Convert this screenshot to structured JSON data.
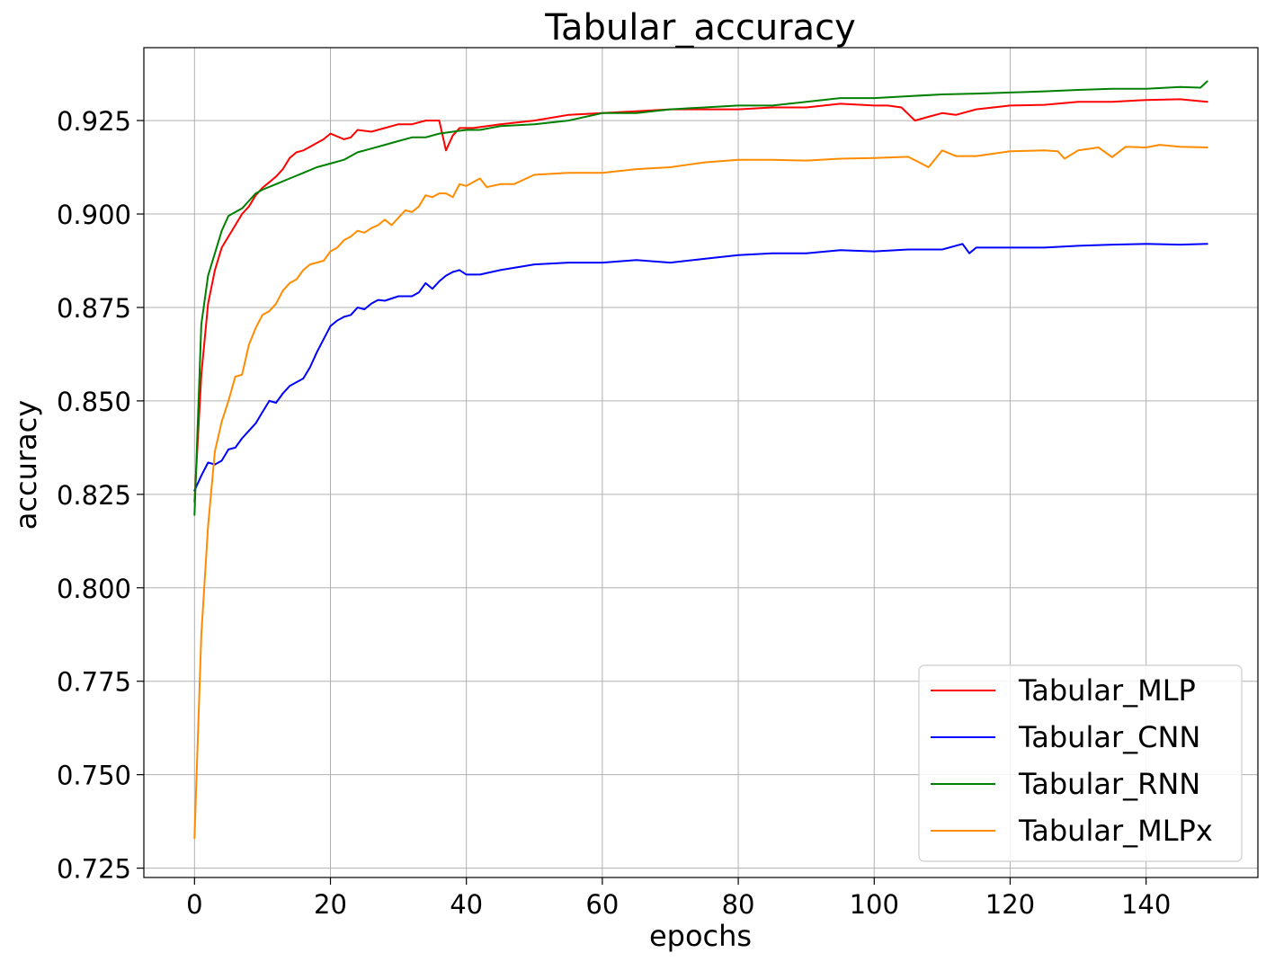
{
  "chart_data": {
    "type": "line",
    "title": "Tabular_accuracy",
    "xlabel": "epochs",
    "ylabel": "accuracy",
    "xlim": [
      -7.45,
      156.45
    ],
    "ylim": [
      0.7225,
      0.9445
    ],
    "xticks": [
      0,
      20,
      40,
      60,
      80,
      100,
      120,
      140
    ],
    "yticks": [
      0.725,
      0.75,
      0.775,
      0.8,
      0.825,
      0.85,
      0.875,
      0.9,
      0.925
    ],
    "grid": true,
    "legend_position": "lower-right",
    "series": [
      {
        "name": "Tabular_MLP",
        "color": "#ff0000",
        "keypoints": [
          [
            0,
            0.823
          ],
          [
            1,
            0.857
          ],
          [
            2,
            0.876
          ],
          [
            3,
            0.885
          ],
          [
            4,
            0.891
          ],
          [
            5,
            0.894
          ],
          [
            6,
            0.897
          ],
          [
            7,
            0.9
          ],
          [
            8,
            0.902
          ],
          [
            9,
            0.905
          ],
          [
            10,
            0.907
          ],
          [
            11,
            0.9085
          ],
          [
            12,
            0.91
          ],
          [
            13,
            0.912
          ],
          [
            14,
            0.915
          ],
          [
            15,
            0.9165
          ],
          [
            16,
            0.917
          ],
          [
            17,
            0.918
          ],
          [
            18,
            0.919
          ],
          [
            19,
            0.92
          ],
          [
            20,
            0.9215
          ],
          [
            22,
            0.92
          ],
          [
            23,
            0.9205
          ],
          [
            24,
            0.9225
          ],
          [
            26,
            0.922
          ],
          [
            28,
            0.923
          ],
          [
            30,
            0.924
          ],
          [
            32,
            0.924
          ],
          [
            34,
            0.925
          ],
          [
            36,
            0.925
          ],
          [
            37,
            0.917
          ],
          [
            38,
            0.921
          ],
          [
            39,
            0.923
          ],
          [
            41,
            0.923
          ],
          [
            45,
            0.924
          ],
          [
            50,
            0.925
          ],
          [
            55,
            0.9265
          ],
          [
            60,
            0.927
          ],
          [
            65,
            0.9275
          ],
          [
            70,
            0.928
          ],
          [
            75,
            0.928
          ],
          [
            80,
            0.928
          ],
          [
            85,
            0.9285
          ],
          [
            90,
            0.9285
          ],
          [
            95,
            0.9295
          ],
          [
            100,
            0.929
          ],
          [
            102,
            0.929
          ],
          [
            104,
            0.9285
          ],
          [
            106,
            0.925
          ],
          [
            108,
            0.926
          ],
          [
            110,
            0.927
          ],
          [
            112,
            0.9265
          ],
          [
            115,
            0.928
          ],
          [
            120,
            0.929
          ],
          [
            125,
            0.9292
          ],
          [
            130,
            0.93
          ],
          [
            135,
            0.93
          ],
          [
            140,
            0.9305
          ],
          [
            145,
            0.9307
          ],
          [
            149,
            0.93
          ]
        ]
      },
      {
        "name": "Tabular_CNN",
        "color": "#0000ff",
        "keypoints": [
          [
            0,
            0.826
          ],
          [
            1,
            0.83
          ],
          [
            2,
            0.8335
          ],
          [
            3,
            0.833
          ],
          [
            4,
            0.834
          ],
          [
            5,
            0.837
          ],
          [
            6,
            0.8375
          ],
          [
            7,
            0.84
          ],
          [
            8,
            0.842
          ],
          [
            9,
            0.844
          ],
          [
            10,
            0.847
          ],
          [
            11,
            0.85
          ],
          [
            12,
            0.8495
          ],
          [
            13,
            0.852
          ],
          [
            14,
            0.854
          ],
          [
            15,
            0.855
          ],
          [
            16,
            0.856
          ],
          [
            17,
            0.859
          ],
          [
            18,
            0.863
          ],
          [
            19,
            0.8665
          ],
          [
            20,
            0.87
          ],
          [
            21,
            0.8715
          ],
          [
            22,
            0.8725
          ],
          [
            23,
            0.873
          ],
          [
            24,
            0.875
          ],
          [
            25,
            0.8745
          ],
          [
            26,
            0.876
          ],
          [
            27,
            0.877
          ],
          [
            28,
            0.8768
          ],
          [
            30,
            0.878
          ],
          [
            31,
            0.878
          ],
          [
            32,
            0.878
          ],
          [
            33,
            0.879
          ],
          [
            34,
            0.8815
          ],
          [
            35,
            0.88
          ],
          [
            36,
            0.882
          ],
          [
            37,
            0.8835
          ],
          [
            38,
            0.8845
          ],
          [
            39,
            0.885
          ],
          [
            40,
            0.8838
          ],
          [
            42,
            0.8838
          ],
          [
            45,
            0.885
          ],
          [
            50,
            0.8865
          ],
          [
            55,
            0.887
          ],
          [
            60,
            0.887
          ],
          [
            65,
            0.8877
          ],
          [
            70,
            0.887
          ],
          [
            75,
            0.888
          ],
          [
            80,
            0.889
          ],
          [
            85,
            0.8895
          ],
          [
            90,
            0.8895
          ],
          [
            95,
            0.8903
          ],
          [
            100,
            0.89
          ],
          [
            105,
            0.8905
          ],
          [
            110,
            0.8905
          ],
          [
            113,
            0.892
          ],
          [
            114,
            0.8895
          ],
          [
            115,
            0.891
          ],
          [
            120,
            0.891
          ],
          [
            125,
            0.891
          ],
          [
            130,
            0.8915
          ],
          [
            135,
            0.8918
          ],
          [
            140,
            0.892
          ],
          [
            145,
            0.8918
          ],
          [
            149,
            0.892
          ]
        ]
      },
      {
        "name": "Tabular_RNN",
        "color": "#008000",
        "keypoints": [
          [
            0,
            0.8195
          ],
          [
            1,
            0.8705
          ],
          [
            2,
            0.8835
          ],
          [
            3,
            0.8895
          ],
          [
            4,
            0.8955
          ],
          [
            5,
            0.8995
          ],
          [
            6,
            0.9005
          ],
          [
            7,
            0.9015
          ],
          [
            8,
            0.9035
          ],
          [
            9,
            0.9055
          ],
          [
            10,
            0.9065
          ],
          [
            12,
            0.908
          ],
          [
            14,
            0.9095
          ],
          [
            16,
            0.911
          ],
          [
            18,
            0.9125
          ],
          [
            20,
            0.9135
          ],
          [
            22,
            0.9145
          ],
          [
            24,
            0.9165
          ],
          [
            26,
            0.9175
          ],
          [
            28,
            0.9185
          ],
          [
            30,
            0.9195
          ],
          [
            32,
            0.9205
          ],
          [
            34,
            0.9205
          ],
          [
            36,
            0.9215
          ],
          [
            38,
            0.922
          ],
          [
            40,
            0.9225
          ],
          [
            42,
            0.9225
          ],
          [
            45,
            0.9235
          ],
          [
            50,
            0.924
          ],
          [
            55,
            0.925
          ],
          [
            60,
            0.927
          ],
          [
            65,
            0.927
          ],
          [
            70,
            0.928
          ],
          [
            75,
            0.9285
          ],
          [
            80,
            0.929
          ],
          [
            85,
            0.929
          ],
          [
            90,
            0.93
          ],
          [
            95,
            0.931
          ],
          [
            100,
            0.931
          ],
          [
            105,
            0.9315
          ],
          [
            110,
            0.932
          ],
          [
            115,
            0.9322
          ],
          [
            120,
            0.9325
          ],
          [
            125,
            0.9328
          ],
          [
            130,
            0.9332
          ],
          [
            135,
            0.9335
          ],
          [
            140,
            0.9335
          ],
          [
            145,
            0.934
          ],
          [
            148,
            0.9338
          ],
          [
            149,
            0.9355
          ]
        ]
      },
      {
        "name": "Tabular_MLPx",
        "color": "#ff8c00",
        "keypoints": [
          [
            0,
            0.733
          ],
          [
            1,
            0.7875
          ],
          [
            2,
            0.8165
          ],
          [
            3,
            0.8365
          ],
          [
            4,
            0.8445
          ],
          [
            5,
            0.85
          ],
          [
            6,
            0.8565
          ],
          [
            7,
            0.857
          ],
          [
            8,
            0.865
          ],
          [
            9,
            0.8695
          ],
          [
            10,
            0.873
          ],
          [
            11,
            0.874
          ],
          [
            12,
            0.876
          ],
          [
            13,
            0.8795
          ],
          [
            14,
            0.8815
          ],
          [
            15,
            0.8825
          ],
          [
            16,
            0.885
          ],
          [
            17,
            0.8865
          ],
          [
            18,
            0.887
          ],
          [
            19,
            0.8875
          ],
          [
            20,
            0.89
          ],
          [
            21,
            0.891
          ],
          [
            22,
            0.893
          ],
          [
            23,
            0.894
          ],
          [
            24,
            0.8955
          ],
          [
            25,
            0.895
          ],
          [
            26,
            0.8962
          ],
          [
            27,
            0.897
          ],
          [
            28,
            0.8985
          ],
          [
            29,
            0.897
          ],
          [
            30,
            0.899
          ],
          [
            31,
            0.901
          ],
          [
            32,
            0.9005
          ],
          [
            33,
            0.902
          ],
          [
            34,
            0.905
          ],
          [
            35,
            0.9045
          ],
          [
            36,
            0.9055
          ],
          [
            37,
            0.9055
          ],
          [
            38,
            0.9045
          ],
          [
            39,
            0.908
          ],
          [
            40,
            0.9075
          ],
          [
            42,
            0.9095
          ],
          [
            43,
            0.9072
          ],
          [
            45,
            0.908
          ],
          [
            47,
            0.908
          ],
          [
            50,
            0.9105
          ],
          [
            55,
            0.911
          ],
          [
            60,
            0.911
          ],
          [
            65,
            0.912
          ],
          [
            70,
            0.9125
          ],
          [
            75,
            0.9138
          ],
          [
            80,
            0.9145
          ],
          [
            85,
            0.9145
          ],
          [
            90,
            0.9143
          ],
          [
            95,
            0.9148
          ],
          [
            100,
            0.915
          ],
          [
            105,
            0.9153
          ],
          [
            108,
            0.9125
          ],
          [
            110,
            0.917
          ],
          [
            112,
            0.9155
          ],
          [
            115,
            0.9155
          ],
          [
            120,
            0.9168
          ],
          [
            125,
            0.917
          ],
          [
            127,
            0.9168
          ],
          [
            128,
            0.9148
          ],
          [
            130,
            0.917
          ],
          [
            133,
            0.9178
          ],
          [
            135,
            0.9152
          ],
          [
            137,
            0.918
          ],
          [
            140,
            0.9178
          ],
          [
            142,
            0.9185
          ],
          [
            145,
            0.918
          ],
          [
            149,
            0.9178
          ]
        ]
      }
    ]
  }
}
